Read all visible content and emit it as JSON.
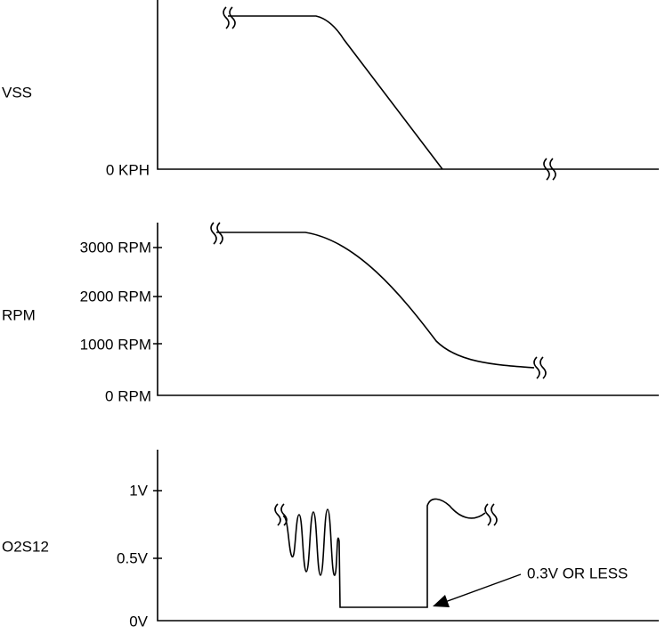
{
  "panels": [
    {
      "label": "VSS",
      "ticks": [
        "0 KPH"
      ]
    },
    {
      "label": "RPM",
      "ticks": [
        "3000 RPM",
        "2000 RPM",
        "1000 RPM",
        "0 RPM"
      ]
    },
    {
      "label": "O2S12",
      "ticks": [
        "1V",
        "0.5V",
        "0V"
      ],
      "annotation": "0.3V OR LESS"
    }
  ]
}
